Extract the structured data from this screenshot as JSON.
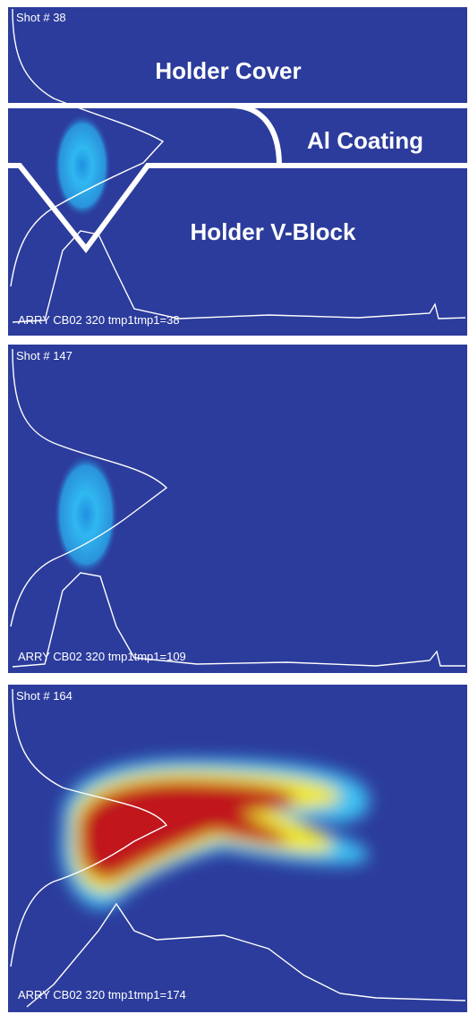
{
  "panels": [
    {
      "shot": "Shot # 38",
      "footer": "ARRY CB02  320  tmp1tmp1=38",
      "annotations": [
        "Holder Cover",
        "Al Coating",
        "Holder V-Block"
      ]
    },
    {
      "shot": "Shot # 147",
      "footer": "ARRY CB02  320  tmp1tmp1=109"
    },
    {
      "shot": "Shot # 164",
      "footer": "ARRY CB02  320  tmp1tmp1=174"
    }
  ]
}
